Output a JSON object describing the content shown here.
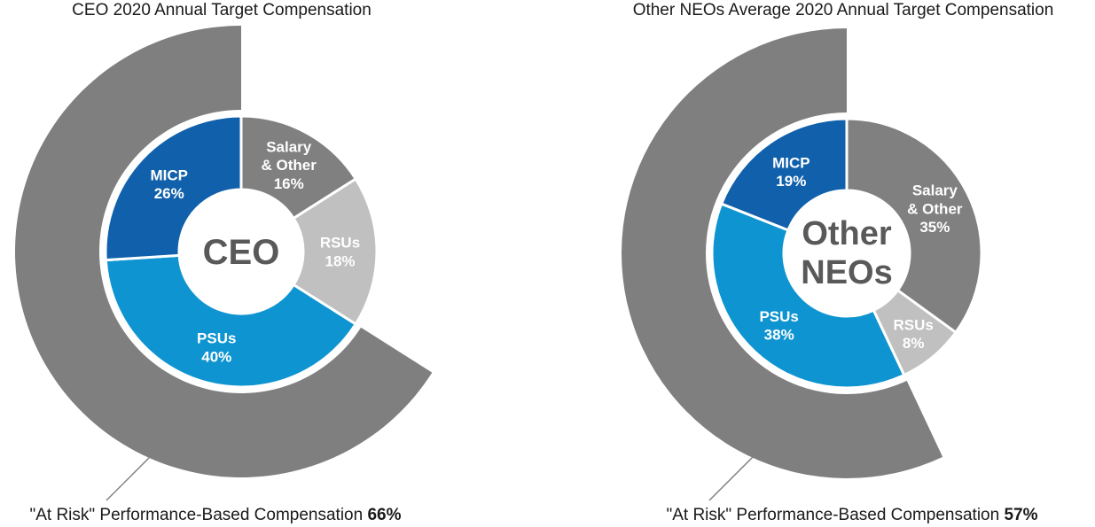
{
  "colors": {
    "outer_ring": "#7f7f7f",
    "leader_line": "#808080",
    "center_text": "#595959"
  },
  "chart_data": [
    {
      "type": "pie",
      "title": "CEO 2020 Annual Target Compensation",
      "center_label": [
        "CEO"
      ],
      "slices": [
        {
          "label": [
            "Salary",
            "& Other"
          ],
          "value": 16,
          "pct_text": "16%",
          "color": "#808080"
        },
        {
          "label": [
            "RSUs"
          ],
          "value": 18,
          "pct_text": "18%",
          "color": "#c0c0c0"
        },
        {
          "label": [
            "PSUs"
          ],
          "value": 40,
          "pct_text": "40%",
          "color": "#0e94d0"
        },
        {
          "label": [
            "MICP"
          ],
          "value": 26,
          "pct_text": "26%",
          "color": "#1060ab"
        }
      ],
      "at_risk": {
        "label": "\"At Risk\" Performance-Based Compensation",
        "value": 66,
        "pct_text": "66%"
      }
    },
    {
      "type": "pie",
      "title": "Other NEOs Average 2020 Annual Target Compensation",
      "center_label": [
        "Other",
        "NEOs"
      ],
      "slices": [
        {
          "label": [
            "Salary",
            "& Other"
          ],
          "value": 35,
          "pct_text": "35%",
          "color": "#808080"
        },
        {
          "label": [
            "RSUs"
          ],
          "value": 8,
          "pct_text": "8%",
          "color": "#c0c0c0"
        },
        {
          "label": [
            "PSUs"
          ],
          "value": 38,
          "pct_text": "38%",
          "color": "#0e94d0"
        },
        {
          "label": [
            "MICP"
          ],
          "value": 19,
          "pct_text": "19%",
          "color": "#1060ab"
        }
      ],
      "at_risk": {
        "label": "\"At Risk\" Performance-Based Compensation",
        "value": 57,
        "pct_text": "57%"
      }
    }
  ]
}
